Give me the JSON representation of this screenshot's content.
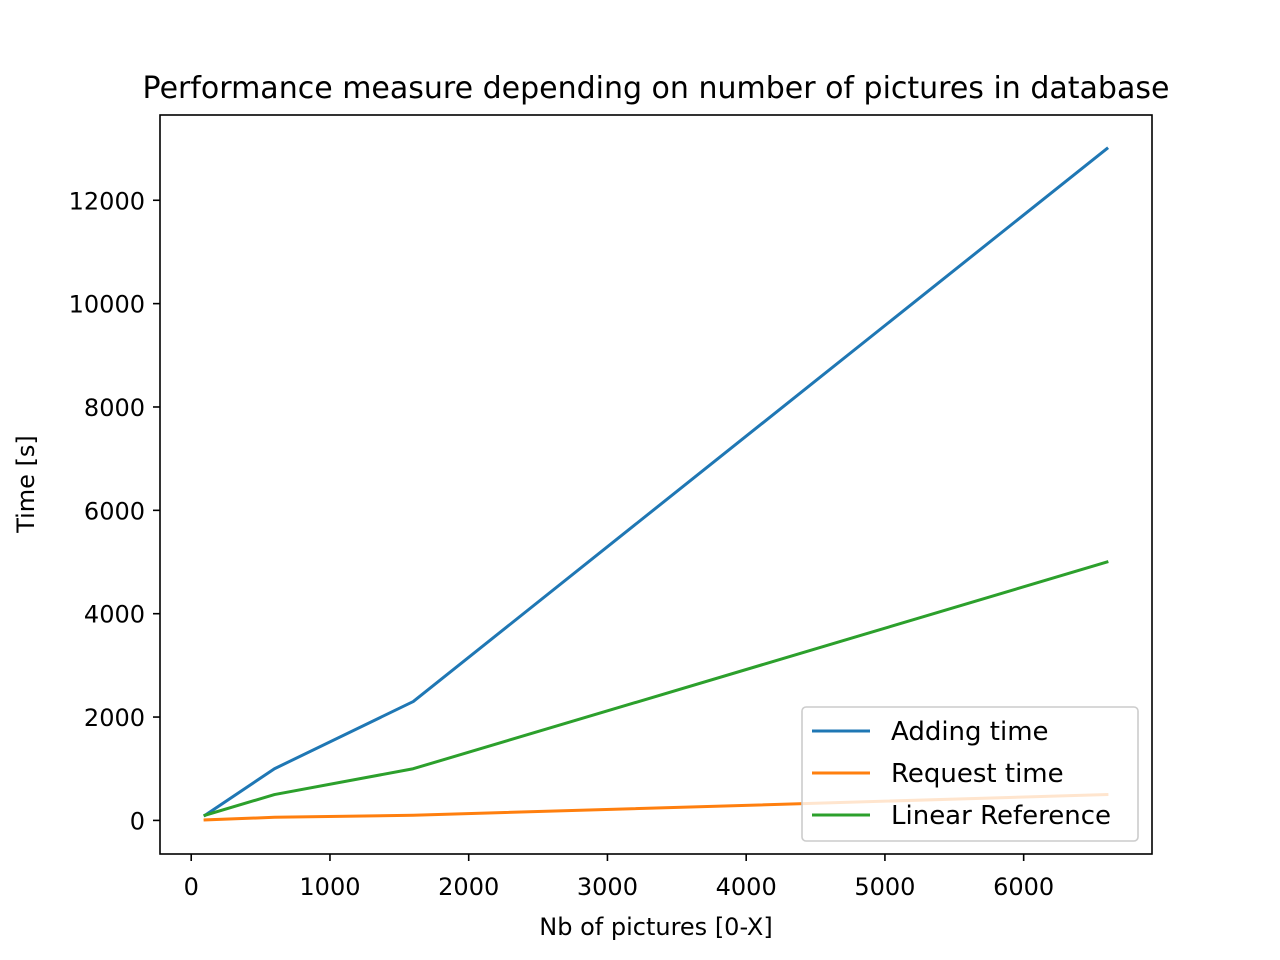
{
  "chart_data": {
    "type": "line",
    "title": "Performance measure depending on number of pictures in database",
    "xlabel": "Nb of pictures [0-X]",
    "ylabel": "Time [s]",
    "xlim": [
      -225,
      6925
    ],
    "ylim": [
      -650,
      13650
    ],
    "xticks": [
      0,
      1000,
      2000,
      3000,
      4000,
      5000,
      6000
    ],
    "yticks": [
      0,
      2000,
      4000,
      6000,
      8000,
      10000,
      12000
    ],
    "grid": false,
    "legend_position": "lower right",
    "series": [
      {
        "name": "Adding time",
        "color": "#1f77b4",
        "x": [
          100,
          600,
          1600,
          6600
        ],
        "y": [
          100,
          1000,
          2300,
          13000
        ]
      },
      {
        "name": "Request time",
        "color": "#ff7f0e",
        "x": [
          100,
          600,
          1600,
          6600
        ],
        "y": [
          10,
          60,
          100,
          500
        ]
      },
      {
        "name": "Linear Reference",
        "color": "#2ca02c",
        "x": [
          100,
          600,
          1600,
          6600
        ],
        "y": [
          100,
          500,
          1000,
          5000
        ]
      }
    ]
  }
}
